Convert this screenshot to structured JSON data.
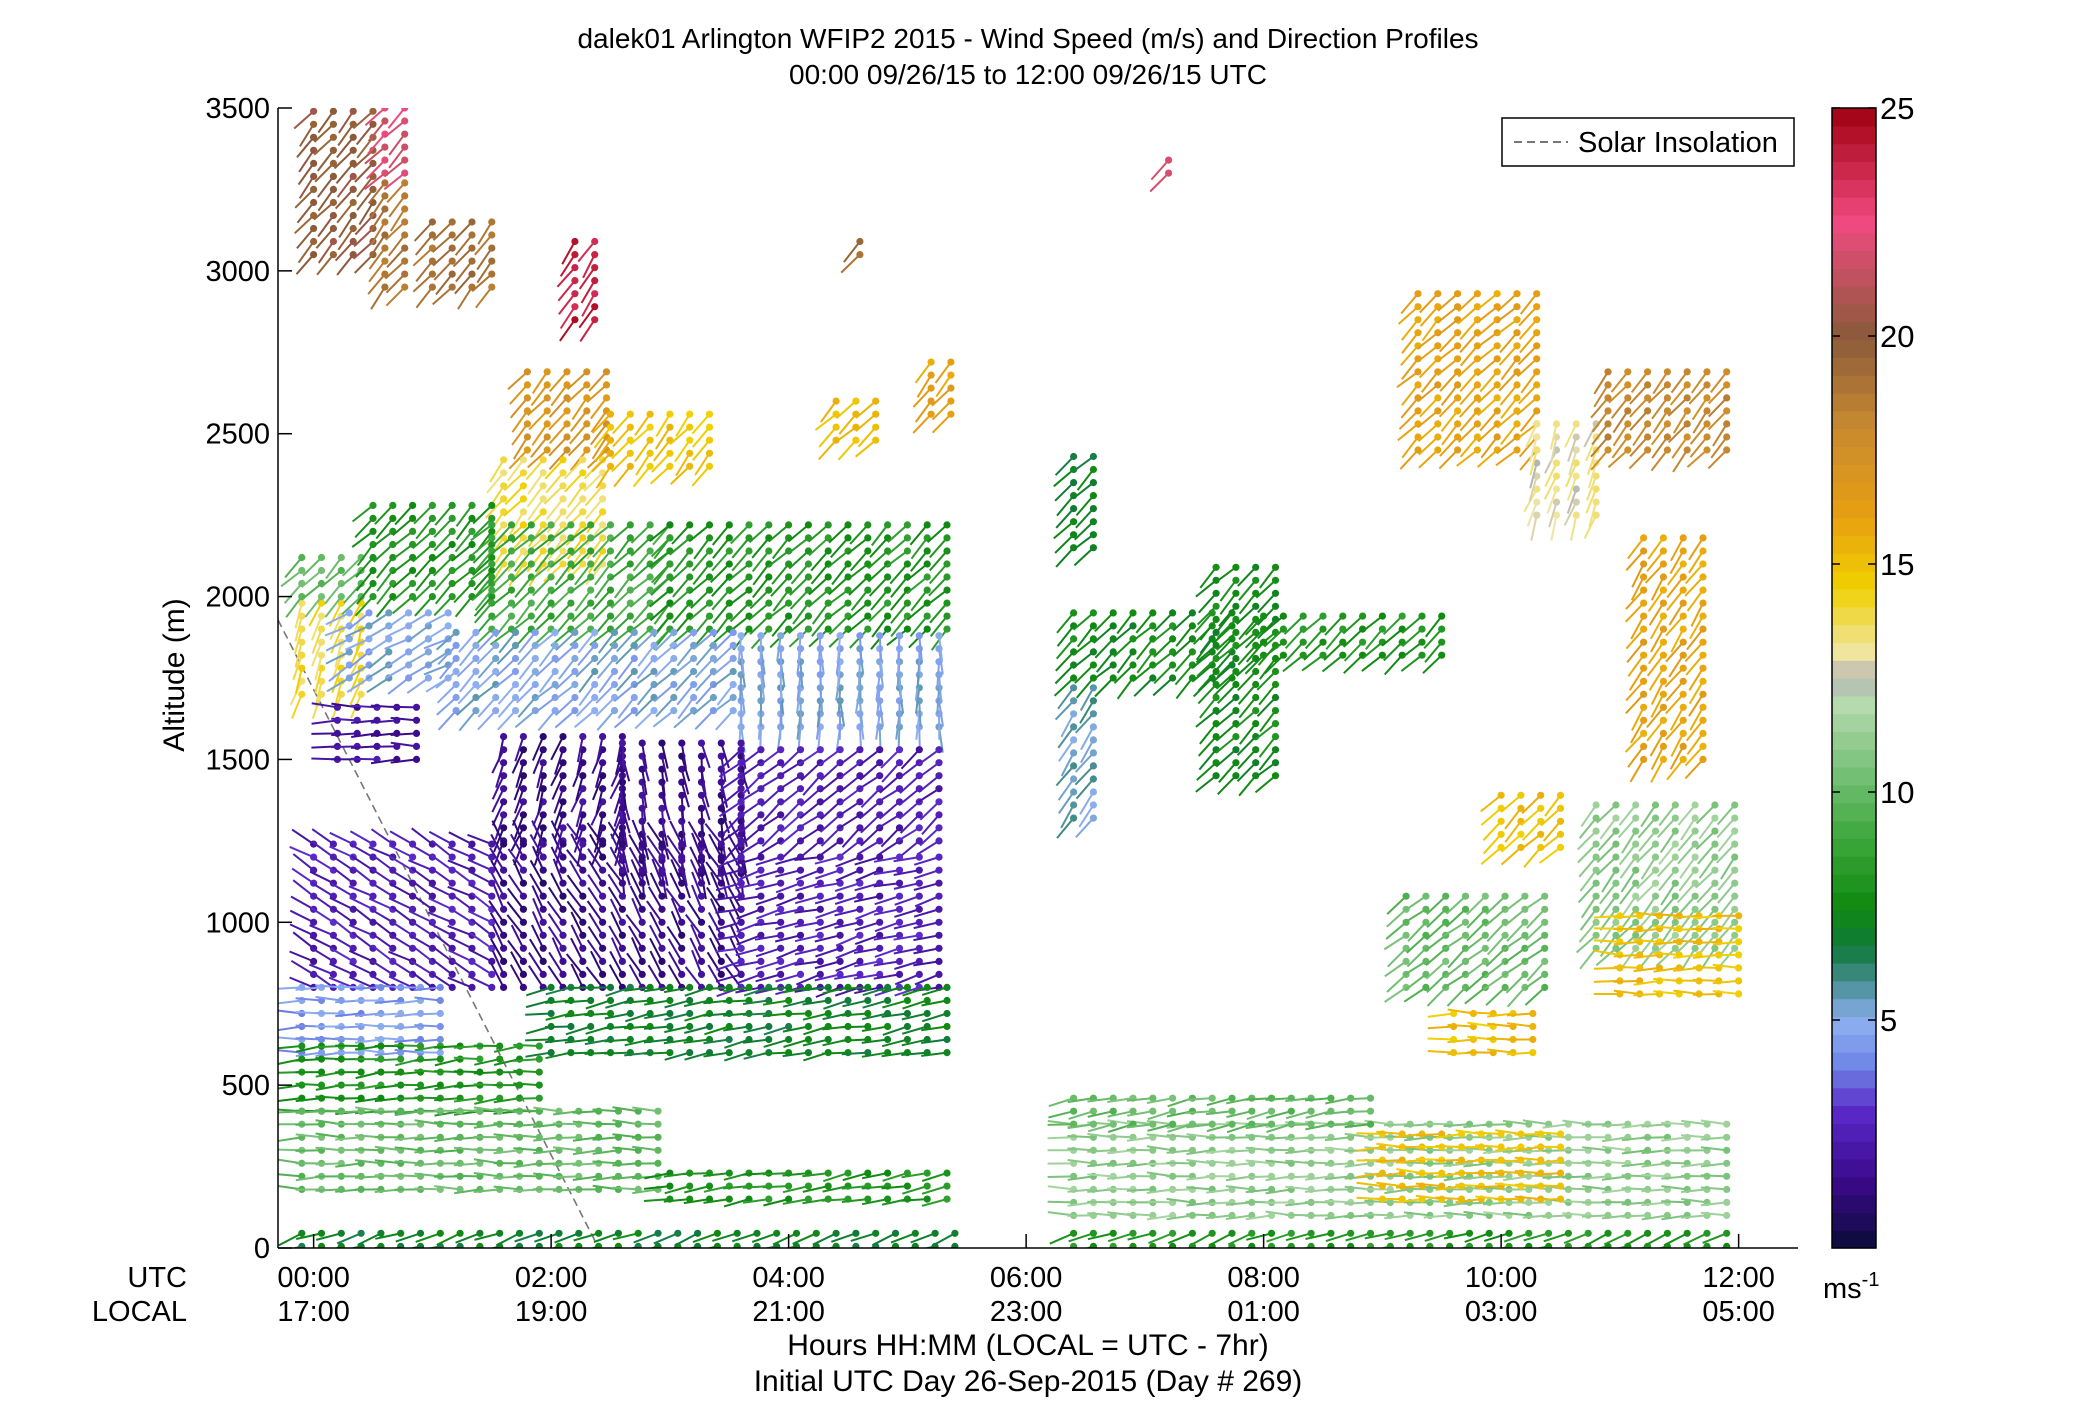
{
  "chart_data": {
    "type": "wind-barb-profile",
    "title": "dalek01 Arlington WFIP2 2015 - Wind Speed (m/s) and Direction Profiles",
    "subtitle": "00:00 09/26/15 to 12:00 09/26/15  UTC",
    "xlabel": "Hours HH:MM  (LOCAL = UTC - 7hr)",
    "xlabel2": "Initial UTC Day 26-Sep-2015 (Day # 269)",
    "ylabel": "Altitude (m)",
    "xlim": [
      -0.3,
      12.5
    ],
    "ylim": [
      0,
      3500
    ],
    "y_ticks": [
      0,
      500,
      1000,
      1500,
      2000,
      2500,
      3000,
      3500
    ],
    "utc_row_label": "UTC",
    "local_row_label": "LOCAL",
    "x_ticks": [
      {
        "hour": 0,
        "utc": "00:00",
        "local": "17:00"
      },
      {
        "hour": 2,
        "utc": "02:00",
        "local": "19:00"
      },
      {
        "hour": 4,
        "utc": "04:00",
        "local": "21:00"
      },
      {
        "hour": 6,
        "utc": "06:00",
        "local": "23:00"
      },
      {
        "hour": 8,
        "utc": "08:00",
        "local": "01:00"
      },
      {
        "hour": 10,
        "utc": "10:00",
        "local": "03:00"
      },
      {
        "hour": 12,
        "utc": "12:00",
        "local": "05:00"
      }
    ],
    "legend": {
      "label": "Solar Insolation",
      "placement": "top-right",
      "line_style": "dashed",
      "color": "#777777"
    },
    "solar_insolation_line": [
      [
        -0.4,
        2000
      ],
      [
        2.4,
        0
      ]
    ],
    "colorbar": {
      "unit_label": "ms",
      "unit_exponent": "-1",
      "range": [
        0,
        25
      ],
      "ticks": [
        5,
        10,
        15,
        20,
        25
      ],
      "color_stops": [
        {
          "v": 0,
          "c": "#0b0b3a"
        },
        {
          "v": 1.5,
          "c": "#3b0a8a"
        },
        {
          "v": 3,
          "c": "#5a28c8"
        },
        {
          "v": 4,
          "c": "#6f86e6"
        },
        {
          "v": 5,
          "c": "#8fb0f0"
        },
        {
          "v": 5.8,
          "c": "#4a8f96"
        },
        {
          "v": 6.6,
          "c": "#0f7a3a"
        },
        {
          "v": 7.5,
          "c": "#108a10"
        },
        {
          "v": 9,
          "c": "#3da83d"
        },
        {
          "v": 10.5,
          "c": "#79c179"
        },
        {
          "v": 12,
          "c": "#b8dcb0"
        },
        {
          "v": 12.5,
          "c": "#b4b4b4"
        },
        {
          "v": 13,
          "c": "#f0e6a8"
        },
        {
          "v": 14.5,
          "c": "#f0d000"
        },
        {
          "v": 16,
          "c": "#e8a010"
        },
        {
          "v": 18,
          "c": "#c88a30"
        },
        {
          "v": 20,
          "c": "#8a5a3a"
        },
        {
          "v": 22.5,
          "c": "#f04a80"
        },
        {
          "v": 25,
          "c": "#a00010"
        }
      ]
    },
    "blocks": [
      {
        "t": [
          0.0,
          0.6
        ],
        "z": [
          3050,
          3500
        ],
        "speed": 20,
        "dir": 220
      },
      {
        "t": [
          0.6,
          0.9
        ],
        "z": [
          3300,
          3500
        ],
        "speed": 22,
        "dir": 225
      },
      {
        "t": [
          0.6,
          0.9
        ],
        "z": [
          2950,
          3300
        ],
        "speed": 19,
        "dir": 220
      },
      {
        "t": [
          1.0,
          1.5
        ],
        "z": [
          2950,
          3150
        ],
        "speed": 19,
        "dir": 220
      },
      {
        "t": [
          2.2,
          2.4
        ],
        "z": [
          2850,
          3100
        ],
        "speed": 24,
        "dir": 215
      },
      {
        "t": [
          4.6,
          4.6
        ],
        "z": [
          3050,
          3100
        ],
        "speed": 19,
        "dir": 225
      },
      {
        "t": [
          7.2,
          7.2
        ],
        "z": [
          3300,
          3360
        ],
        "speed": 22,
        "dir": 230
      },
      {
        "t": [
          1.8,
          2.5
        ],
        "z": [
          2450,
          2700
        ],
        "speed": 17,
        "dir": 220
      },
      {
        "t": [
          1.6,
          2.5
        ],
        "z": [
          2100,
          2450
        ],
        "speed": 14,
        "dir": 220
      },
      {
        "t": [
          2.5,
          3.4
        ],
        "z": [
          2400,
          2560
        ],
        "speed": 15,
        "dir": 220
      },
      {
        "t": [
          5.2,
          5.4
        ],
        "z": [
          2560,
          2720
        ],
        "speed": 16,
        "dir": 220
      },
      {
        "t": [
          4.4,
          4.8
        ],
        "z": [
          2480,
          2600
        ],
        "speed": 15,
        "dir": 225
      },
      {
        "t": [
          -0.1,
          0.4
        ],
        "z": [
          1700,
          2000
        ],
        "speed": 14,
        "dir": 200
      },
      {
        "t": [
          -0.1,
          0.5
        ],
        "z": [
          2000,
          2150
        ],
        "speed": 10,
        "dir": 225
      },
      {
        "t": [
          0.5,
          1.5
        ],
        "z": [
          2000,
          2300
        ],
        "speed": 8,
        "dir": 225
      },
      {
        "t": [
          1.5,
          3.0
        ],
        "z": [
          1900,
          2250
        ],
        "speed": 9,
        "dir": 225
      },
      {
        "t": [
          3.0,
          5.4
        ],
        "z": [
          1900,
          2250
        ],
        "speed": 8,
        "dir": 225
      },
      {
        "t": [
          0.3,
          1.2
        ],
        "z": [
          1750,
          1950
        ],
        "speed": 5,
        "dir": 240
      },
      {
        "t": [
          1.2,
          3.6
        ],
        "z": [
          1650,
          1900
        ],
        "speed": 5,
        "dir": 225
      },
      {
        "t": [
          3.6,
          5.4
        ],
        "z": [
          1600,
          1900
        ],
        "speed": 5,
        "dir": 180
      },
      {
        "t": [
          0.2,
          1.0
        ],
        "z": [
          1500,
          1680
        ],
        "speed": 2,
        "dir": 270
      },
      {
        "t": [
          1.6,
          2.6
        ],
        "z": [
          1250,
          1600
        ],
        "speed": 1.5,
        "dir": 200
      },
      {
        "t": [
          2.6,
          3.6
        ],
        "z": [
          1150,
          1550
        ],
        "speed": 1.5,
        "dir": 170
      },
      {
        "t": [
          3.6,
          5.4
        ],
        "z": [
          1250,
          1550
        ],
        "speed": 2.5,
        "dir": 230
      },
      {
        "t": [
          0.0,
          1.6
        ],
        "z": [
          800,
          1250
        ],
        "speed": 2.5,
        "dir": 300
      },
      {
        "t": [
          1.6,
          3.6
        ],
        "z": [
          800,
          1250
        ],
        "speed": 1.5,
        "dir": 330
      },
      {
        "t": [
          3.6,
          5.4
        ],
        "z": [
          800,
          1200
        ],
        "speed": 2.5,
        "dir": 255
      },
      {
        "t": [
          -0.1,
          1.2
        ],
        "z": [
          600,
          800
        ],
        "speed": 4.5,
        "dir": 270
      },
      {
        "t": [
          -0.1,
          2.0
        ],
        "z": [
          420,
          620
        ],
        "speed": 8,
        "dir": 265
      },
      {
        "t": [
          2.0,
          5.4
        ],
        "z": [
          600,
          820
        ],
        "speed": 7,
        "dir": 260
      },
      {
        "t": [
          -0.1,
          3.0
        ],
        "z": [
          180,
          420
        ],
        "speed": 10,
        "dir": 270
      },
      {
        "t": [
          3.0,
          5.4
        ],
        "z": [
          150,
          250
        ],
        "speed": 8,
        "dir": 260
      },
      {
        "t": [
          -0.1,
          5.4
        ],
        "z": [
          5,
          80
        ],
        "speed": 7,
        "dir": 250
      },
      {
        "t": [
          6.4,
          6.7
        ],
        "z": [
          2150,
          2450
        ],
        "speed": 7,
        "dir": 225
      },
      {
        "t": [
          6.4,
          6.7
        ],
        "z": [
          1320,
          1750
        ],
        "speed": 5.5,
        "dir": 215
      },
      {
        "t": [
          6.4,
          7.8
        ],
        "z": [
          1750,
          1960
        ],
        "speed": 7.5,
        "dir": 225
      },
      {
        "t": [
          7.6,
          8.2
        ],
        "z": [
          1450,
          2100
        ],
        "speed": 7.5,
        "dir": 225
      },
      {
        "t": [
          8.0,
          9.6
        ],
        "z": [
          1820,
          1960
        ],
        "speed": 8,
        "dir": 225
      },
      {
        "t": [
          9.3,
          10.3
        ],
        "z": [
          2450,
          2950
        ],
        "speed": 16,
        "dir": 225
      },
      {
        "t": [
          10.3,
          10.9
        ],
        "z": [
          2250,
          2550
        ],
        "speed": 13,
        "dir": 200
      },
      {
        "t": [
          10.9,
          11.9
        ],
        "z": [
          2450,
          2720
        ],
        "speed": 18,
        "dir": 220
      },
      {
        "t": [
          11.2,
          11.8
        ],
        "z": [
          1500,
          2200
        ],
        "speed": 16,
        "dir": 215
      },
      {
        "t": [
          9.2,
          10.5
        ],
        "z": [
          800,
          1100
        ],
        "speed": 10,
        "dir": 230
      },
      {
        "t": [
          10.0,
          10.6
        ],
        "z": [
          1230,
          1400
        ],
        "speed": 15,
        "dir": 225
      },
      {
        "t": [
          10.8,
          12.0
        ],
        "z": [
          920,
          1380
        ],
        "speed": 11,
        "dir": 220
      },
      {
        "t": [
          11.0,
          12.0
        ],
        "z": [
          780,
          1050
        ],
        "speed": 15,
        "dir": 270
      },
      {
        "t": [
          9.6,
          10.4
        ],
        "z": [
          600,
          750
        ],
        "speed": 15,
        "dir": 270
      },
      {
        "t": [
          6.4,
          12.0
        ],
        "z": [
          100,
          400
        ],
        "speed": 11,
        "dir": 270
      },
      {
        "t": [
          9.0,
          10.6
        ],
        "z": [
          150,
          360
        ],
        "speed": 15,
        "dir": 270
      },
      {
        "t": [
          6.4,
          9.0
        ],
        "z": [
          380,
          480
        ],
        "speed": 10,
        "dir": 260
      },
      {
        "t": [
          6.4,
          12.0
        ],
        "z": [
          5,
          80
        ],
        "speed": 8,
        "dir": 250
      }
    ]
  }
}
